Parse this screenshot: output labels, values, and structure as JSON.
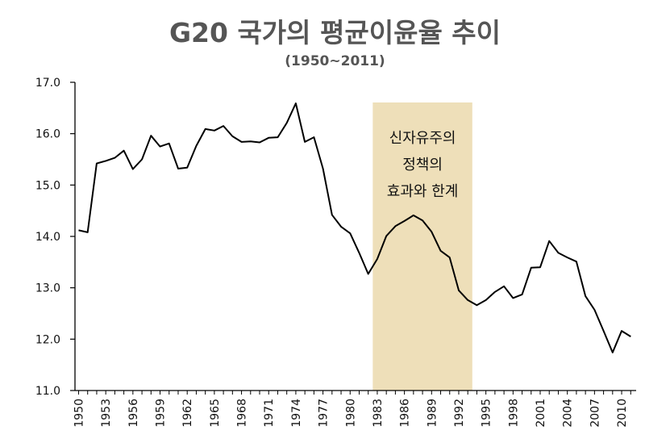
{
  "title": "G20 국가의 평균이윤율 추이",
  "subtitle": "(1950~2011)",
  "chart_data": {
    "type": "line",
    "title": "G20 국가의 평균이윤율 추이",
    "subtitle": "(1950~2011)",
    "xlabel": "",
    "ylabel": "",
    "xlim": [
      1950,
      2011
    ],
    "ylim": [
      11.0,
      17.0
    ],
    "yticks": [
      "11.0",
      "12.0",
      "13.0",
      "14.0",
      "15.0",
      "16.0",
      "17.0"
    ],
    "xticks": [
      1950,
      1953,
      1956,
      1959,
      1962,
      1965,
      1968,
      1971,
      1974,
      1977,
      1980,
      1983,
      1986,
      1989,
      1992,
      1995,
      1998,
      2001,
      2004,
      2007,
      2010
    ],
    "grid": false,
    "line_color": "#000000",
    "x": [
      1950,
      1951,
      1952,
      1953,
      1954,
      1955,
      1956,
      1957,
      1958,
      1959,
      1960,
      1961,
      1962,
      1963,
      1964,
      1965,
      1966,
      1967,
      1968,
      1969,
      1970,
      1971,
      1972,
      1973,
      1974,
      1975,
      1976,
      1977,
      1978,
      1979,
      1980,
      1981,
      1982,
      1983,
      1984,
      1985,
      1986,
      1987,
      1988,
      1989,
      1990,
      1991,
      1992,
      1993,
      1994,
      1995,
      1996,
      1997,
      1998,
      1999,
      2000,
      2001,
      2002,
      2003,
      2004,
      2005,
      2006,
      2007,
      2008,
      2009,
      2010,
      2011
    ],
    "values": [
      14.12,
      14.08,
      15.42,
      15.47,
      15.53,
      15.67,
      15.31,
      15.5,
      15.96,
      15.75,
      15.81,
      15.32,
      15.34,
      15.76,
      16.09,
      16.06,
      16.15,
      15.95,
      15.84,
      15.85,
      15.83,
      15.92,
      15.93,
      16.21,
      16.59,
      15.84,
      15.93,
      15.32,
      14.42,
      14.19,
      14.06,
      13.68,
      13.27,
      13.56,
      14.01,
      14.2,
      14.3,
      14.41,
      14.31,
      14.09,
      13.72,
      13.59,
      12.95,
      12.76,
      12.66,
      12.76,
      12.92,
      13.03,
      12.8,
      12.87,
      13.39,
      13.4,
      13.91,
      13.68,
      13.59,
      13.51,
      12.84,
      12.57,
      12.16,
      11.74,
      12.16,
      12.05
    ],
    "highlight": {
      "x_start": 1983,
      "x_end": 1994,
      "color": "#eedfb9",
      "label_lines": [
        "신자유주의",
        "정책의",
        "효과와 한계"
      ]
    }
  }
}
